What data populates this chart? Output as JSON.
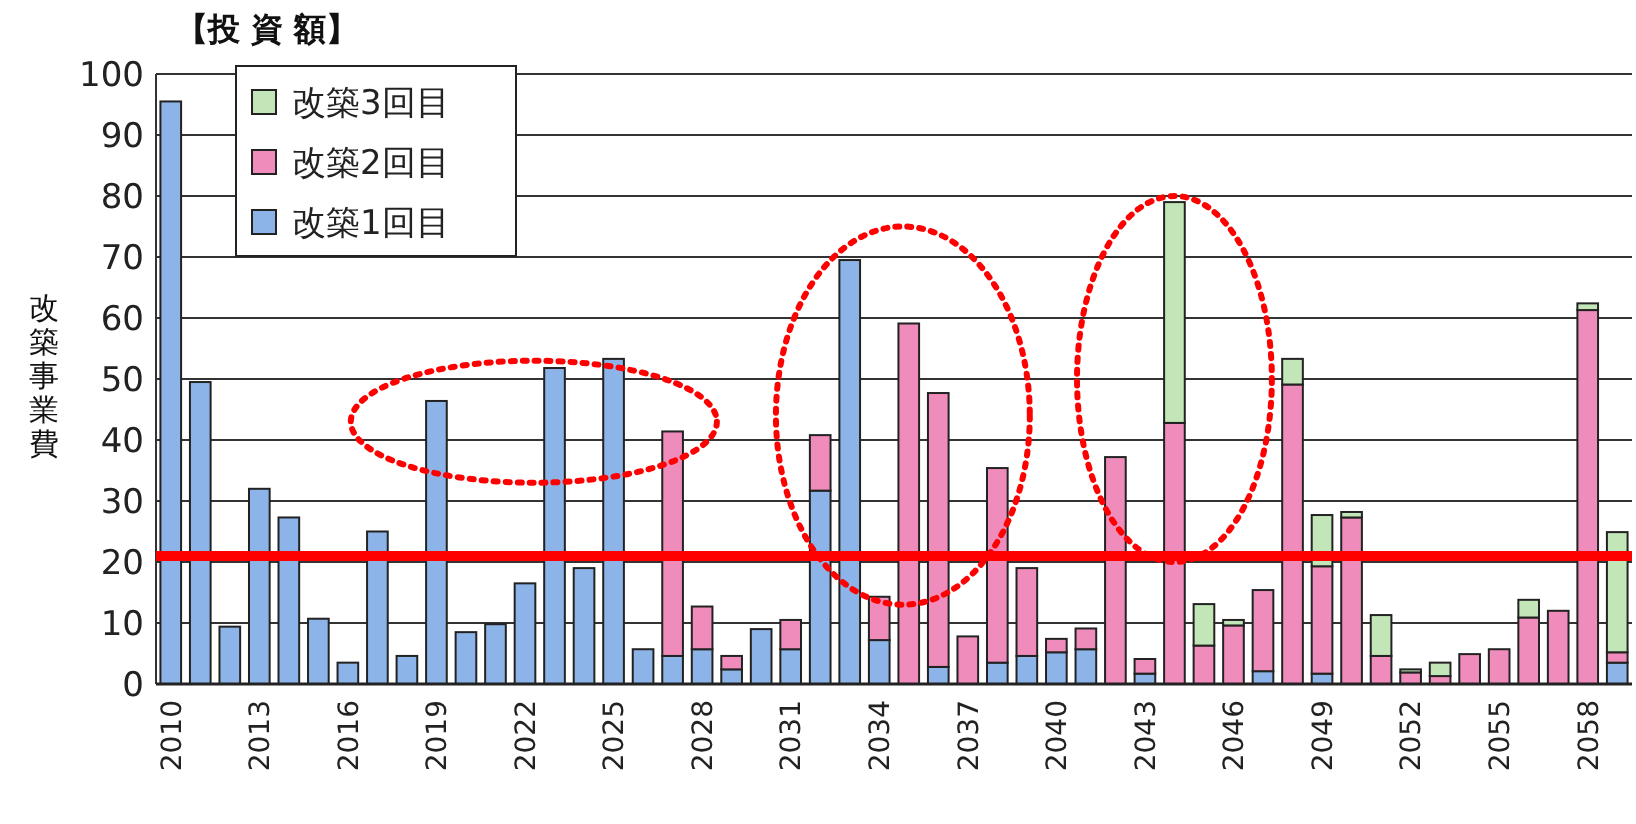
{
  "chart_data": {
    "type": "bar",
    "title": "【投 資 額】",
    "ylabel": "改築事業費",
    "stacked": true,
    "categories": [
      "2010",
      null,
      null,
      "2013",
      null,
      null,
      "2016",
      null,
      null,
      "2019",
      null,
      null,
      "2022",
      null,
      null,
      "2025",
      null,
      null,
      "2028",
      null,
      null,
      "2031",
      null,
      null,
      "2034",
      null,
      null,
      "2037",
      null,
      null,
      "2040",
      null,
      null,
      "2043",
      null,
      null,
      "2046",
      null,
      null,
      "2049",
      null,
      null,
      "2052",
      null,
      null,
      "2055",
      null,
      null,
      "2058",
      null
    ],
    "series": [
      {
        "name": "改築1回目",
        "color": "#8db4e8",
        "values": [
          95.5,
          49.5,
          9.4,
          32,
          27.3,
          10.7,
          3.5,
          25,
          4.6,
          46.4,
          8.5,
          9.8,
          16.5,
          51.8,
          19,
          53.3,
          5.7,
          4.6,
          5.7,
          2.4,
          9,
          5.7,
          31.7,
          69.5,
          7.2,
          0,
          2.8,
          0,
          3.5,
          4.6,
          5.2,
          5.7,
          0,
          1.7,
          0,
          0,
          0,
          2.1,
          0,
          1.7,
          0,
          0,
          0,
          0,
          0,
          0,
          0,
          0,
          0,
          3.5
        ]
      },
      {
        "name": "改築2回目",
        "color": "#f08cbc",
        "values": [
          0,
          0,
          0,
          0,
          0,
          0,
          0,
          0,
          0,
          0,
          0,
          0,
          0,
          0,
          0,
          0,
          0,
          36.8,
          7,
          2.2,
          0,
          4.8,
          9.1,
          0,
          7.1,
          59.1,
          44.9,
          7.8,
          31.9,
          14.4,
          2.2,
          3.4,
          37.2,
          2.4,
          42.8,
          6.3,
          9.6,
          13.3,
          49.1,
          17.6,
          27.3,
          4.6,
          1.9,
          1.3,
          4.9,
          5.7,
          10.9,
          12,
          61.3,
          1.7
        ]
      },
      {
        "name": "改築3回目",
        "color": "#c2e6b8",
        "values": [
          0,
          0,
          0,
          0,
          0,
          0,
          0,
          0,
          0,
          0,
          0,
          0,
          0,
          0,
          0,
          0,
          0,
          0,
          0,
          0,
          0,
          0,
          0,
          0,
          0,
          0,
          0,
          0,
          0,
          0,
          0,
          0,
          0,
          0,
          36.2,
          6.8,
          0.9,
          0,
          4.2,
          8.4,
          0.9,
          6.7,
          0.5,
          2.2,
          0,
          0,
          2.9,
          0,
          1.1,
          19.7
        ]
      }
    ],
    "ylim": [
      0,
      100
    ],
    "yticks": [
      0,
      10,
      20,
      30,
      40,
      50,
      60,
      70,
      80,
      90,
      100
    ],
    "grid": "y",
    "legend": "top left",
    "ref_lines": [
      {
        "axis": "y",
        "value": 21,
        "color": "#ff0000"
      }
    ]
  }
}
